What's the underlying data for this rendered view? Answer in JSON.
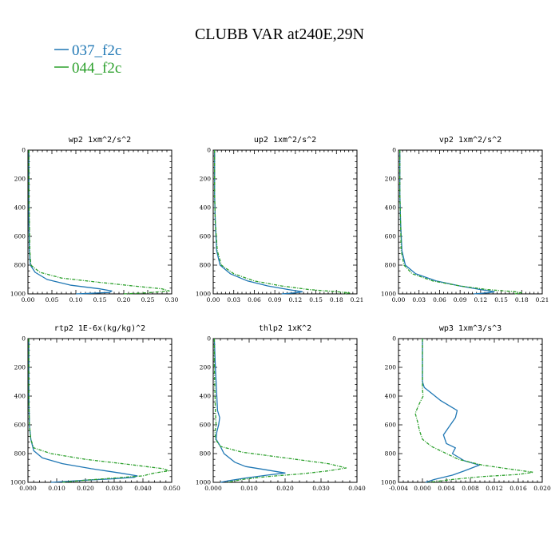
{
  "title": "CLUBB VAR at240E,29N",
  "legend": [
    {
      "label": "037_f2c",
      "color": "#1f77b4",
      "dash": "solid"
    },
    {
      "label": "044_f2c",
      "color": "#2ca02c",
      "dash": "dashed"
    }
  ],
  "chart_data": [
    {
      "type": "line",
      "title": "wp2  1xm^2/s^2",
      "xlim": [
        0,
        0.3
      ],
      "ylim": [
        0,
        1000
      ],
      "y_inverted": true,
      "xticks": [
        "0.00",
        "0.05",
        "0.10",
        "0.15",
        "0.20",
        "0.25",
        "0.30"
      ],
      "yticks": [
        "0",
        "200",
        "400",
        "600",
        "800",
        "1000"
      ],
      "series": [
        {
          "name": "037_f2c",
          "color": "#1f77b4",
          "dash": "solid",
          "points": [
            [
              0.002,
              0
            ],
            [
              0.002,
              300
            ],
            [
              0.002,
              500
            ],
            [
              0.003,
              700
            ],
            [
              0.005,
              800
            ],
            [
              0.015,
              850
            ],
            [
              0.04,
              900
            ],
            [
              0.09,
              940
            ],
            [
              0.15,
              965
            ],
            [
              0.175,
              980
            ],
            [
              0.17,
              990
            ],
            [
              0.13,
              996
            ],
            [
              0.1,
              1000
            ]
          ]
        },
        {
          "name": "044_f2c",
          "color": "#2ca02c",
          "dash": "dashed",
          "points": [
            [
              0.002,
              0
            ],
            [
              0.002,
              300
            ],
            [
              0.003,
              500
            ],
            [
              0.004,
              700
            ],
            [
              0.006,
              800
            ],
            [
              0.025,
              850
            ],
            [
              0.07,
              890
            ],
            [
              0.15,
              920
            ],
            [
              0.22,
              945
            ],
            [
              0.28,
              965
            ],
            [
              0.295,
              980
            ],
            [
              0.25,
              992
            ],
            [
              0.2,
              1000
            ]
          ]
        }
      ]
    },
    {
      "type": "line",
      "title": "up2  1xm^2/s^2",
      "xlim": [
        0,
        0.21
      ],
      "ylim": [
        0,
        1000
      ],
      "y_inverted": true,
      "xticks": [
        "0.00",
        "0.03",
        "0.06",
        "0.09",
        "0.12",
        "0.15",
        "0.18",
        "0.21"
      ],
      "yticks": [
        "0",
        "200",
        "400",
        "600",
        "800",
        "1000"
      ],
      "series": [
        {
          "name": "037_f2c",
          "color": "#1f77b4",
          "dash": "solid",
          "points": [
            [
              0.002,
              0
            ],
            [
              0.002,
              300
            ],
            [
              0.003,
              500
            ],
            [
              0.005,
              700
            ],
            [
              0.01,
              800
            ],
            [
              0.025,
              860
            ],
            [
              0.05,
              910
            ],
            [
              0.08,
              945
            ],
            [
              0.11,
              970
            ],
            [
              0.13,
              985
            ],
            [
              0.12,
              993
            ],
            [
              0.1,
              1000
            ]
          ]
        },
        {
          "name": "044_f2c",
          "color": "#2ca02c",
          "dash": "dashed",
          "points": [
            [
              0.002,
              0
            ],
            [
              0.002,
              300
            ],
            [
              0.003,
              500
            ],
            [
              0.006,
              700
            ],
            [
              0.012,
              800
            ],
            [
              0.03,
              860
            ],
            [
              0.06,
              910
            ],
            [
              0.1,
              945
            ],
            [
              0.14,
              970
            ],
            [
              0.18,
              985
            ],
            [
              0.2,
              993
            ],
            [
              0.19,
              1000
            ]
          ]
        }
      ]
    },
    {
      "type": "line",
      "title": "vp2  1xm^2/s^2",
      "xlim": [
        0,
        0.21
      ],
      "ylim": [
        0,
        1000
      ],
      "y_inverted": true,
      "xticks": [
        "0.00",
        "0.03",
        "0.06",
        "0.09",
        "0.12",
        "0.15",
        "0.18",
        "0.21"
      ],
      "yticks": [
        "0",
        "200",
        "400",
        "600",
        "800",
        "1000"
      ],
      "series": [
        {
          "name": "037_f2c",
          "color": "#1f77b4",
          "dash": "solid",
          "points": [
            [
              0.002,
              0
            ],
            [
              0.002,
              300
            ],
            [
              0.003,
              500
            ],
            [
              0.005,
              700
            ],
            [
              0.01,
              800
            ],
            [
              0.025,
              860
            ],
            [
              0.055,
              910
            ],
            [
              0.09,
              945
            ],
            [
              0.12,
              970
            ],
            [
              0.14,
              985
            ],
            [
              0.13,
              993
            ],
            [
              0.11,
              1000
            ]
          ]
        },
        {
          "name": "044_f2c",
          "color": "#2ca02c",
          "dash": "dashed",
          "points": [
            [
              0.002,
              0
            ],
            [
              0.002,
              300
            ],
            [
              0.003,
              500
            ],
            [
              0.004,
              700
            ],
            [
              0.008,
              800
            ],
            [
              0.02,
              860
            ],
            [
              0.05,
              910
            ],
            [
              0.09,
              945
            ],
            [
              0.13,
              970
            ],
            [
              0.17,
              985
            ],
            [
              0.18,
              993
            ],
            [
              0.17,
              1000
            ]
          ]
        }
      ]
    },
    {
      "type": "line",
      "title": "rtp2  1E-6x(kg/kg)^2",
      "xlim": [
        0,
        0.05
      ],
      "ylim": [
        0,
        1000
      ],
      "y_inverted": true,
      "xticks": [
        "0.000",
        "0.010",
        "0.020",
        "0.030",
        "0.040",
        "0.050"
      ],
      "yticks": [
        "0",
        "200",
        "400",
        "600",
        "800",
        "1000"
      ],
      "series": [
        {
          "name": "037_f2c",
          "color": "#1f77b4",
          "dash": "solid",
          "points": [
            [
              0.0003,
              0
            ],
            [
              0.0003,
              400
            ],
            [
              0.0005,
              600
            ],
            [
              0.001,
              700
            ],
            [
              0.002,
              780
            ],
            [
              0.005,
              830
            ],
            [
              0.012,
              870
            ],
            [
              0.022,
              905
            ],
            [
              0.032,
              935
            ],
            [
              0.038,
              955
            ],
            [
              0.037,
              965
            ],
            [
              0.03,
              975
            ],
            [
              0.02,
              985
            ],
            [
              0.012,
              995
            ],
            [
              0.008,
              1000
            ]
          ]
        },
        {
          "name": "044_f2c",
          "color": "#2ca02c",
          "dash": "dashed",
          "points": [
            [
              0.0003,
              0
            ],
            [
              0.0003,
              400
            ],
            [
              0.0005,
              600
            ],
            [
              0.001,
              700
            ],
            [
              0.002,
              760
            ],
            [
              0.008,
              800
            ],
            [
              0.02,
              840
            ],
            [
              0.035,
              875
            ],
            [
              0.047,
              905
            ],
            [
              0.049,
              920
            ],
            [
              0.044,
              935
            ],
            [
              0.04,
              955
            ],
            [
              0.03,
              970
            ],
            [
              0.02,
              985
            ],
            [
              0.012,
              1000
            ]
          ]
        }
      ]
    },
    {
      "type": "line",
      "title": "thlp2  1xK^2",
      "xlim": [
        0,
        0.04
      ],
      "ylim": [
        0,
        1000
      ],
      "y_inverted": true,
      "xticks": [
        "0.000",
        "0.010",
        "0.020",
        "0.030",
        "0.040"
      ],
      "yticks": [
        "0",
        "200",
        "400",
        "600",
        "800",
        "1000"
      ],
      "series": [
        {
          "name": "037_f2c",
          "color": "#1f77b4",
          "dash": "solid",
          "points": [
            [
              0.0003,
              0
            ],
            [
              0.0006,
              200
            ],
            [
              0.001,
              400
            ],
            [
              0.0012,
              500
            ],
            [
              0.0018,
              550
            ],
            [
              0.0015,
              600
            ],
            [
              0.001,
              650
            ],
            [
              0.0008,
              700
            ],
            [
              0.002,
              750
            ],
            [
              0.003,
              800
            ],
            [
              0.006,
              860
            ],
            [
              0.009,
              890
            ],
            [
              0.014,
              910
            ],
            [
              0.02,
              935
            ],
            [
              0.015,
              950
            ],
            [
              0.009,
              970
            ],
            [
              0.004,
              990
            ],
            [
              0.002,
              1000
            ]
          ]
        },
        {
          "name": "044_f2c",
          "color": "#2ca02c",
          "dash": "dashed",
          "points": [
            [
              0.0003,
              0
            ],
            [
              0.0003,
              200
            ],
            [
              0.0005,
              400
            ],
            [
              0.0006,
              500
            ],
            [
              0.0008,
              600
            ],
            [
              0.0005,
              650
            ],
            [
              0.0006,
              700
            ],
            [
              0.002,
              750
            ],
            [
              0.008,
              790
            ],
            [
              0.02,
              830
            ],
            [
              0.032,
              870
            ],
            [
              0.037,
              900
            ],
            [
              0.032,
              920
            ],
            [
              0.025,
              940
            ],
            [
              0.015,
              960
            ],
            [
              0.008,
              980
            ],
            [
              0.004,
              1000
            ]
          ]
        }
      ]
    },
    {
      "type": "line",
      "title": "wp3  1xm^3/s^3",
      "xlim": [
        -0.004,
        0.02
      ],
      "ylim": [
        0,
        1000
      ],
      "y_inverted": true,
      "xticks": [
        "-0.004",
        "0.000",
        "0.004",
        "0.008",
        "0.012",
        "0.016",
        "0.020"
      ],
      "yticks": [
        "0",
        "200",
        "400",
        "600",
        "800",
        "1000"
      ],
      "series": [
        {
          "name": "037_f2c",
          "color": "#1f77b4",
          "dash": "solid",
          "points": [
            [
              0,
              0
            ],
            [
              0,
              300
            ],
            [
              0.0003,
              340
            ],
            [
              0.0015,
              380
            ],
            [
              0.003,
              430
            ],
            [
              0.005,
              480
            ],
            [
              0.0058,
              500
            ],
            [
              0.0055,
              550
            ],
            [
              0.0045,
              610
            ],
            [
              0.0035,
              670
            ],
            [
              0.004,
              730
            ],
            [
              0.0055,
              760
            ],
            [
              0.005,
              800
            ],
            [
              0.007,
              850
            ],
            [
              0.0095,
              880
            ],
            [
              0.007,
              920
            ],
            [
              0.005,
              950
            ],
            [
              0.002,
              980
            ],
            [
              0.0005,
              1000
            ]
          ]
        },
        {
          "name": "044_f2c",
          "color": "#2ca02c",
          "dash": "dashed",
          "points": [
            [
              0,
              0
            ],
            [
              0,
              350
            ],
            [
              0.0001,
              400
            ],
            [
              -0.0006,
              460
            ],
            [
              -0.0012,
              520
            ],
            [
              -0.0008,
              580
            ],
            [
              -0.0005,
              640
            ],
            [
              0,
              700
            ],
            [
              0.0015,
              750
            ],
            [
              0.0035,
              790
            ],
            [
              0.006,
              840
            ],
            [
              0.01,
              880
            ],
            [
              0.015,
              910
            ],
            [
              0.0185,
              930
            ],
            [
              0.016,
              945
            ],
            [
              0.01,
              960
            ],
            [
              0.005,
              980
            ],
            [
              0.001,
              1000
            ]
          ]
        }
      ]
    }
  ]
}
